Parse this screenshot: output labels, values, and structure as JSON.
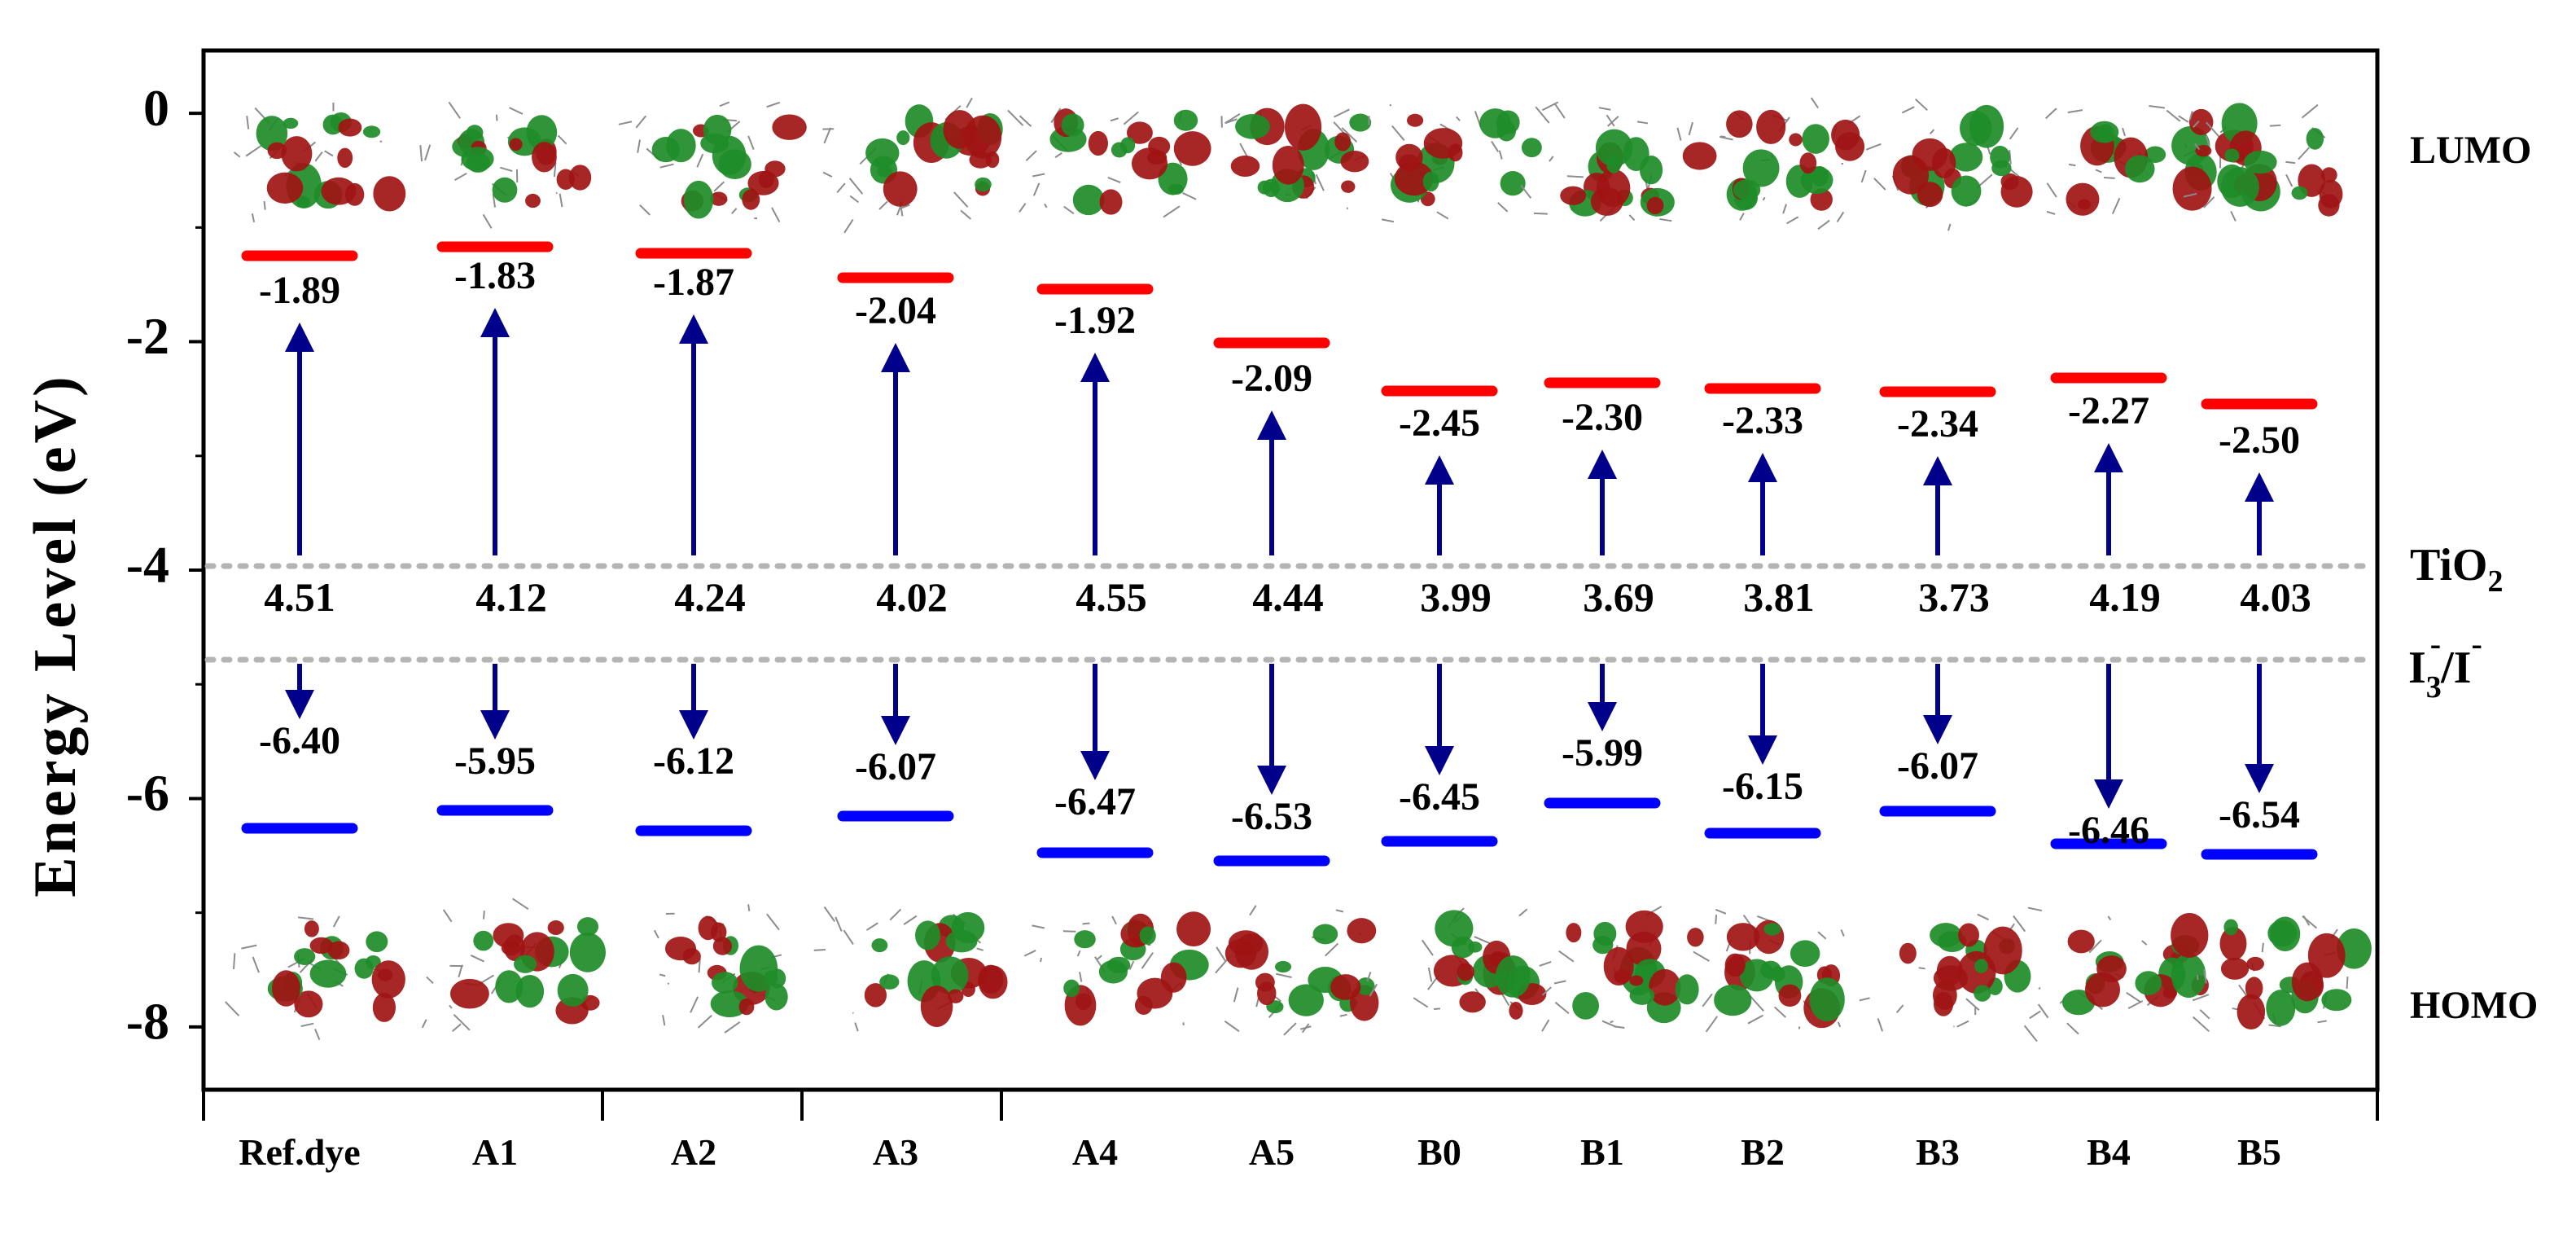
{
  "chart_data": {
    "type": "energy-level-diagram",
    "ylabel": "Energy Level (eV)",
    "ylim": [
      -8.55,
      0.55
    ],
    "yticks": [
      0,
      -2,
      -4,
      -6,
      -8
    ],
    "ytick_labels": [
      "0",
      "-2",
      "-4",
      "-6",
      "-8"
    ],
    "categories": [
      "Ref.dye",
      "A1",
      "A2",
      "A3",
      "A4",
      "A5",
      "B0",
      "B1",
      "B2",
      "B3",
      "B4",
      "B5"
    ],
    "lumo_labels": [
      "-1.89",
      "-1.83",
      "-1.87",
      "-2.04",
      "-1.92",
      "-2.09",
      "-2.45",
      "-2.30",
      "-2.33",
      "-2.34",
      "-2.27",
      "-2.50"
    ],
    "lumo_values": [
      -1.89,
      -1.83,
      -1.87,
      -2.04,
      -1.92,
      -2.09,
      -2.45,
      -2.3,
      -2.33,
      -2.34,
      -2.27,
      -2.5
    ],
    "homo_labels": [
      "-6.40",
      "-5.95",
      "-6.12",
      "-6.07",
      "-6.47",
      "-6.53",
      "-6.45",
      "-5.99",
      "-6.15",
      "-6.07",
      "-6.46",
      "-6.54"
    ],
    "homo_values": [
      -6.4,
      -5.95,
      -6.12,
      -6.07,
      -6.47,
      -6.53,
      -6.45,
      -5.99,
      -6.15,
      -6.07,
      -6.46,
      -6.54
    ],
    "gap_labels": [
      "4.51",
      "4.12",
      "4.24",
      "4.02",
      "4.55",
      "4.44",
      "3.99",
      "3.69",
      "3.81",
      "3.73",
      "4.19",
      "4.03"
    ],
    "gap_values": [
      4.51,
      4.12,
      4.24,
      4.02,
      4.55,
      4.44,
      3.99,
      3.69,
      3.81,
      3.73,
      4.19,
      4.03
    ],
    "reference_lines": [
      {
        "name": "TiO2",
        "value": -4.0,
        "style": "dotted"
      },
      {
        "name": "I3-/I-",
        "value": -4.8,
        "style": "dotted"
      }
    ],
    "side_labels": {
      "lumo": "LUMO",
      "homo": "HOMO",
      "tio2_main": "TiO",
      "tio2_sub": "2",
      "iodide_a": "I",
      "iodide_a_sub": "3",
      "iodide_a_sup": "-",
      "iodide_sep": "/I",
      "iodide_b_sup": "-"
    },
    "colors": {
      "lumo": "#ff0000",
      "homo": "#0000ff",
      "arrow": "#00008b",
      "dotted": "#b4b4b4",
      "orbital_green": "#1e8c28",
      "orbital_red": "#a01414",
      "atoms": "#8c8c8c"
    }
  }
}
